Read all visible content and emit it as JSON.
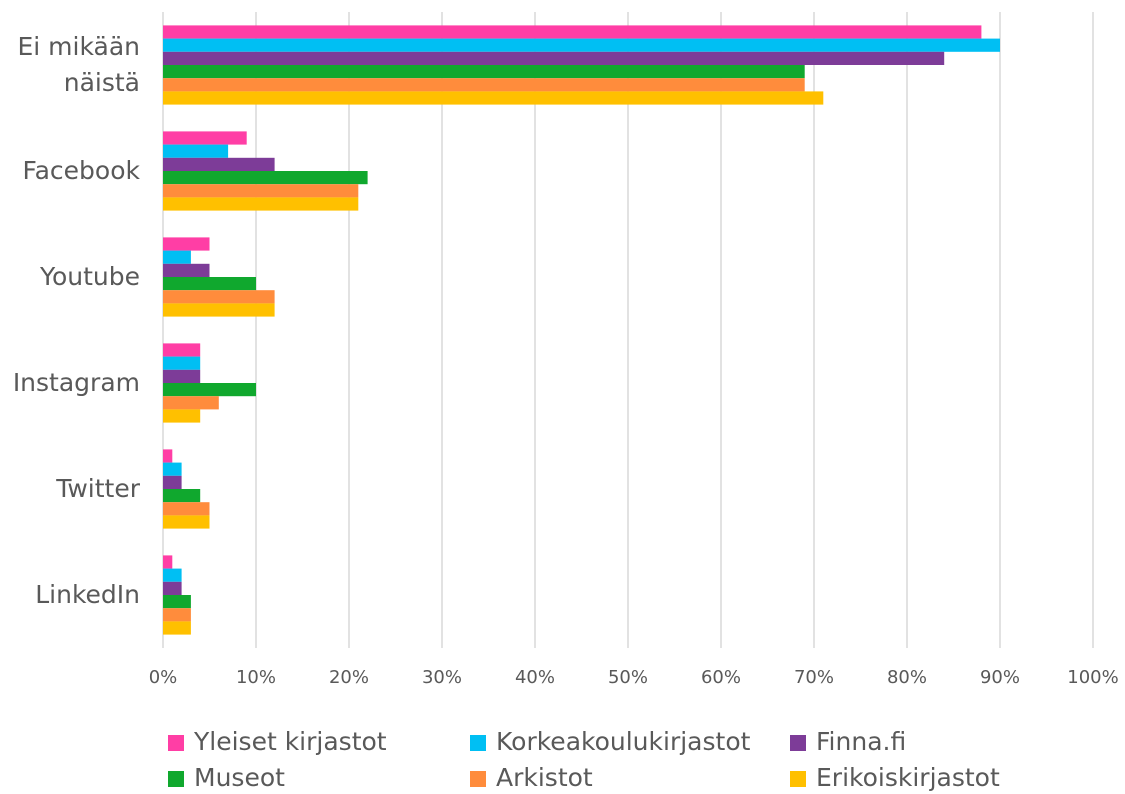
{
  "chart_data": {
    "type": "hbar",
    "categories": [
      "Ei mikään näistä",
      "Facebook",
      "Youtube",
      "Instagram",
      "Twitter",
      "LinkedIn"
    ],
    "series": [
      {
        "name": "Yleiset kirjastot",
        "color": "#ff3ea5",
        "values": [
          88,
          9,
          5,
          4,
          1,
          1
        ]
      },
      {
        "name": "Korkeakoulukirjastot",
        "color": "#00bff3",
        "values": [
          90,
          7,
          3,
          4,
          2,
          2
        ]
      },
      {
        "name": "Finna.fi",
        "color": "#7d3c98",
        "values": [
          84,
          12,
          5,
          4,
          2,
          2
        ]
      },
      {
        "name": "Museot",
        "color": "#10a82e",
        "values": [
          69,
          22,
          10,
          10,
          4,
          3
        ]
      },
      {
        "name": "Arkistot",
        "color": "#ff8c3c",
        "values": [
          69,
          21,
          12,
          6,
          5,
          3
        ]
      },
      {
        "name": "Erikoiskirjastot",
        "color": "#ffc000",
        "values": [
          71,
          21,
          12,
          4,
          5,
          3
        ]
      }
    ],
    "xlim": [
      0,
      100
    ],
    "xticks": [
      {
        "value": 0,
        "label": "0%"
      },
      {
        "value": 10,
        "label": "10%"
      },
      {
        "value": 20,
        "label": "20%"
      },
      {
        "value": 30,
        "label": "30%"
      },
      {
        "value": 40,
        "label": "40%"
      },
      {
        "value": 50,
        "label": "50%"
      },
      {
        "value": 60,
        "label": "60%"
      },
      {
        "value": 70,
        "label": "70%"
      },
      {
        "value": 80,
        "label": "80%"
      },
      {
        "value": 90,
        "label": "90%"
      },
      {
        "value": 100,
        "label": "100%"
      }
    ],
    "grid": true,
    "legend": "bottom"
  }
}
